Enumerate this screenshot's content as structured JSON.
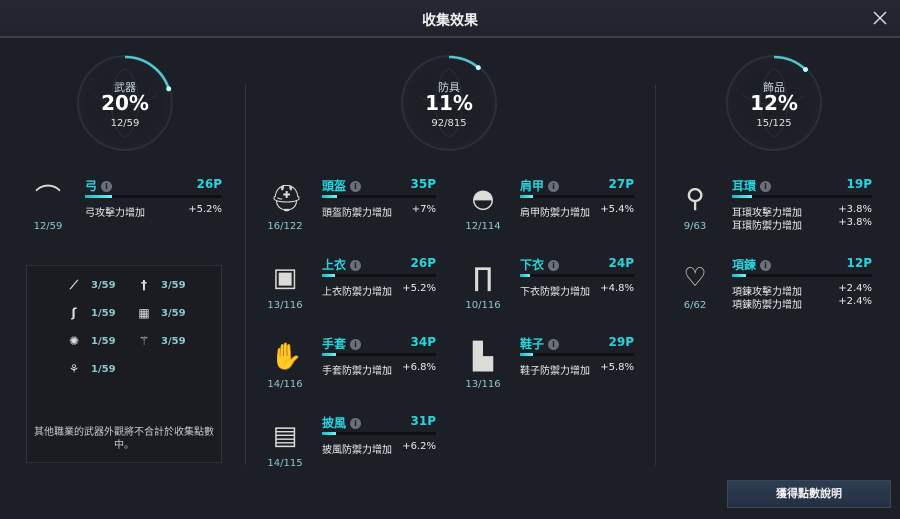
{
  "title": "收集效果",
  "accent": "#27d4dd",
  "summary": [
    {
      "label": "武器",
      "percent": "20%",
      "count": "12/59",
      "progress": 0.2
    },
    {
      "label": "防具",
      "percent": "11%",
      "count": "92/815",
      "progress": 0.11
    },
    {
      "label": "飾品",
      "percent": "12%",
      "count": "15/125",
      "progress": 0.12
    }
  ],
  "items": [
    {
      "name": "弓",
      "points": "26P",
      "count": "12/59",
      "icon": "bow-icon",
      "effects": [
        {
          "label": "弓攻擊力增加",
          "value": "+5.2%"
        }
      ],
      "progress": 0.2
    },
    {
      "name": "頭盔",
      "points": "35P",
      "count": "16/122",
      "icon": "helmet-icon",
      "effects": [
        {
          "label": "頭盔防禦力增加",
          "value": "+7%"
        }
      ],
      "progress": 0.13
    },
    {
      "name": "肩甲",
      "points": "27P",
      "count": "12/114",
      "icon": "shoulder-icon",
      "effects": [
        {
          "label": "肩甲防禦力增加",
          "value": "+5.4%"
        }
      ],
      "progress": 0.11
    },
    {
      "name": "上衣",
      "points": "26P",
      "count": "13/116",
      "icon": "top-icon",
      "effects": [
        {
          "label": "上衣防禦力增加",
          "value": "+5.2%"
        }
      ],
      "progress": 0.11
    },
    {
      "name": "下衣",
      "points": "24P",
      "count": "10/116",
      "icon": "pants-icon",
      "effects": [
        {
          "label": "下衣防禦力增加",
          "value": "+4.8%"
        }
      ],
      "progress": 0.09
    },
    {
      "name": "手套",
      "points": "34P",
      "count": "14/116",
      "icon": "gloves-icon",
      "effects": [
        {
          "label": "手套防禦力增加",
          "value": "+6.8%"
        }
      ],
      "progress": 0.12
    },
    {
      "name": "鞋子",
      "points": "29P",
      "count": "13/116",
      "icon": "boots-icon",
      "effects": [
        {
          "label": "鞋子防禦力增加",
          "value": "+5.8%"
        }
      ],
      "progress": 0.11
    },
    {
      "name": "披風",
      "points": "31P",
      "count": "14/115",
      "icon": "cloak-icon",
      "effects": [
        {
          "label": "披風防禦力增加",
          "value": "+6.2%"
        }
      ],
      "progress": 0.12
    },
    {
      "name": "耳環",
      "points": "19P",
      "count": "9/63",
      "icon": "earring-icon",
      "effects": [
        {
          "label": "耳環攻擊力增加",
          "value": "+3.8%"
        },
        {
          "label": "耳環防禦力增加",
          "value": "+3.8%"
        }
      ],
      "progress": 0.14
    },
    {
      "name": "項鍊",
      "points": "12P",
      "count": "6/62",
      "icon": "necklace-icon",
      "effects": [
        {
          "label": "項鍊攻擊力增加",
          "value": "+2.4%"
        },
        {
          "label": "項鍊防禦力增加",
          "value": "+2.4%"
        }
      ],
      "progress": 0.1
    }
  ],
  "other_weapons": [
    {
      "icon": "spear-icon",
      "count": "3/59"
    },
    {
      "icon": "sword-icon",
      "count": "3/59"
    },
    {
      "icon": "scythe-icon",
      "count": "1/59"
    },
    {
      "icon": "tome-icon",
      "count": "3/59"
    },
    {
      "icon": "orb-icon",
      "count": "1/59"
    },
    {
      "icon": "staff-icon",
      "count": "3/59"
    },
    {
      "icon": "wand-icon",
      "count": "1/59"
    }
  ],
  "other_note": "其他職業的武器外觀將不合計於收集點數中。",
  "button": "獲得點數說明"
}
